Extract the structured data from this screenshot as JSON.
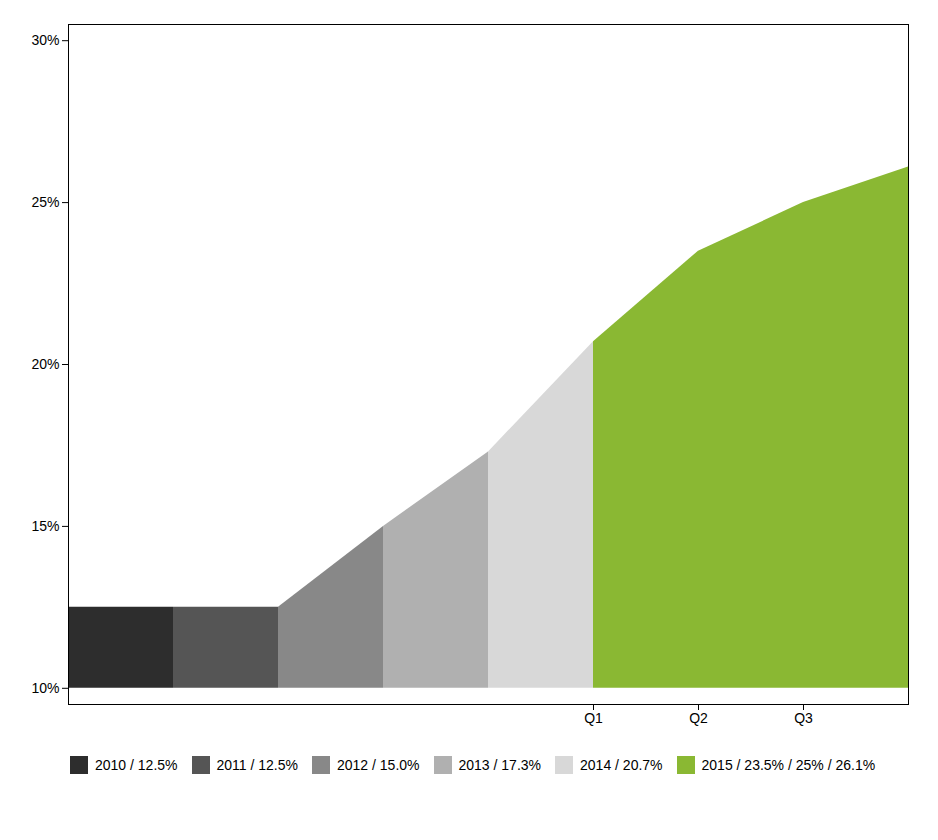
{
  "chart_data": {
    "type": "area",
    "categories": [
      null,
      null,
      null,
      null,
      null,
      "Q1",
      "Q2",
      "Q3",
      null
    ],
    "series": [
      {
        "name": "2010 / 12.5%",
        "color": "#2d2d2d",
        "values": [
          12.5,
          12.5,
          null,
          null,
          null,
          null,
          null,
          null,
          null
        ]
      },
      {
        "name": "2011 / 12.5%",
        "color": "#555555",
        "values": [
          null,
          12.5,
          12.5,
          null,
          null,
          null,
          null,
          null,
          null
        ]
      },
      {
        "name": "2012 / 15.0%",
        "color": "#888888",
        "values": [
          null,
          null,
          12.5,
          15.0,
          null,
          null,
          null,
          null,
          null
        ]
      },
      {
        "name": "2013 / 17.3%",
        "color": "#b0b0b0",
        "values": [
          null,
          null,
          null,
          15.0,
          17.3,
          null,
          null,
          null,
          null
        ]
      },
      {
        "name": "2014 / 20.7%",
        "color": "#d8d8d8",
        "values": [
          null,
          null,
          null,
          null,
          17.3,
          20.7,
          null,
          null,
          null
        ]
      },
      {
        "name": "2015 / 23.5% / 25% / 26.1%",
        "color": "#8ab833",
        "values": [
          null,
          null,
          null,
          null,
          null,
          20.7,
          23.5,
          25.0,
          26.1
        ]
      }
    ],
    "baseline": 10,
    "ylim": [
      9.5,
      30.5
    ],
    "yticks": [
      {
        "value": 10,
        "label": "10%"
      },
      {
        "value": 15,
        "label": "15%"
      },
      {
        "value": 20,
        "label": "20%"
      },
      {
        "value": 25,
        "label": "25%"
      },
      {
        "value": 30,
        "label": "30%"
      }
    ],
    "grid": false,
    "legend": "bottom"
  }
}
